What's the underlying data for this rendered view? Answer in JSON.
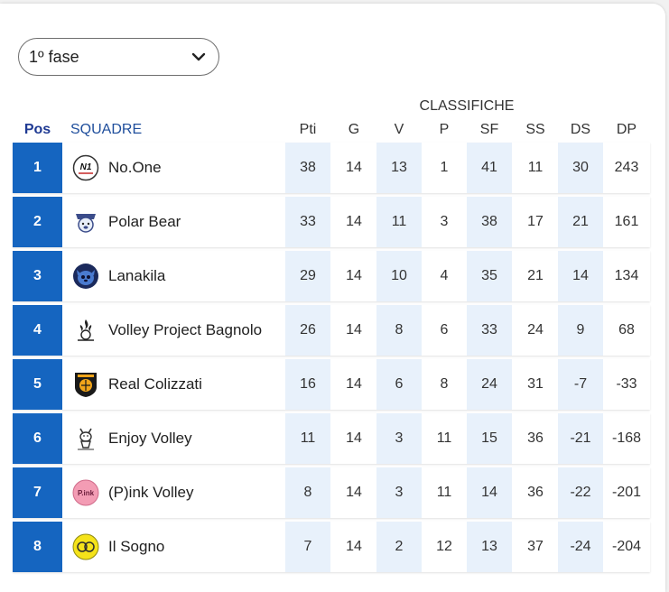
{
  "phase_select": {
    "value": "1º fase"
  },
  "table_title": "CLASSIFICHE",
  "headers": {
    "pos": "Pos",
    "team": "SQUADRE",
    "stats": [
      "Pti",
      "G",
      "V",
      "P",
      "SF",
      "SS",
      "DS",
      "DP"
    ]
  },
  "rows": [
    {
      "pos": "1",
      "team": "No.One",
      "logo": "no-one-logo",
      "stats": [
        "38",
        "14",
        "13",
        "1",
        "41",
        "11",
        "30",
        "243"
      ]
    },
    {
      "pos": "2",
      "team": "Polar Bear",
      "logo": "polar-bear-logo",
      "stats": [
        "33",
        "14",
        "11",
        "3",
        "38",
        "17",
        "21",
        "161"
      ]
    },
    {
      "pos": "3",
      "team": "Lanakila",
      "logo": "lanakila-logo",
      "stats": [
        "29",
        "14",
        "10",
        "4",
        "35",
        "21",
        "14",
        "134"
      ]
    },
    {
      "pos": "4",
      "team": "Volley Project Bagnolo",
      "logo": "volley-project-bagnolo-logo",
      "stats": [
        "26",
        "14",
        "8",
        "6",
        "33",
        "24",
        "9",
        "68"
      ]
    },
    {
      "pos": "5",
      "team": "Real Colizzati",
      "logo": "real-colizzati-logo",
      "stats": [
        "16",
        "14",
        "6",
        "8",
        "24",
        "31",
        "-7",
        "-33"
      ]
    },
    {
      "pos": "6",
      "team": "Enjoy Volley",
      "logo": "enjoy-volley-logo",
      "stats": [
        "11",
        "14",
        "3",
        "11",
        "15",
        "36",
        "-21",
        "-168"
      ]
    },
    {
      "pos": "7",
      "team": "(P)ink Volley",
      "logo": "pink-volley-logo",
      "stats": [
        "8",
        "14",
        "3",
        "11",
        "14",
        "36",
        "-22",
        "-201"
      ]
    },
    {
      "pos": "8",
      "team": "Il Sogno",
      "logo": "il-sogno-logo",
      "stats": [
        "7",
        "14",
        "2",
        "12",
        "13",
        "37",
        "-24",
        "-204"
      ]
    }
  ],
  "colors": {
    "position_bg": "#1565c0",
    "shaded_column": "#e8f1fb",
    "header_accent": "#1f4e9c"
  }
}
